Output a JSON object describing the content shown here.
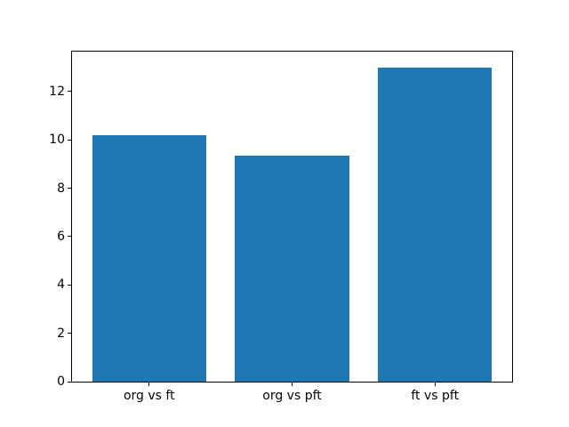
{
  "chart_data": {
    "type": "bar",
    "title": "",
    "xlabel": "",
    "ylabel": "",
    "categories": [
      "org vs ft",
      "org vs pft",
      "ft vs pft"
    ],
    "values": [
      10.2,
      9.35,
      13.0
    ],
    "yticks": [
      0,
      2,
      4,
      6,
      8,
      10,
      12
    ],
    "ylim": [
      0,
      13.65
    ],
    "xlim": [
      -0.54,
      2.54
    ],
    "bar_width": 0.8,
    "bar_color": "#1f77b4",
    "background_color": "#ffffff",
    "axis_color": "#000000",
    "grid": false,
    "legend": null
  }
}
